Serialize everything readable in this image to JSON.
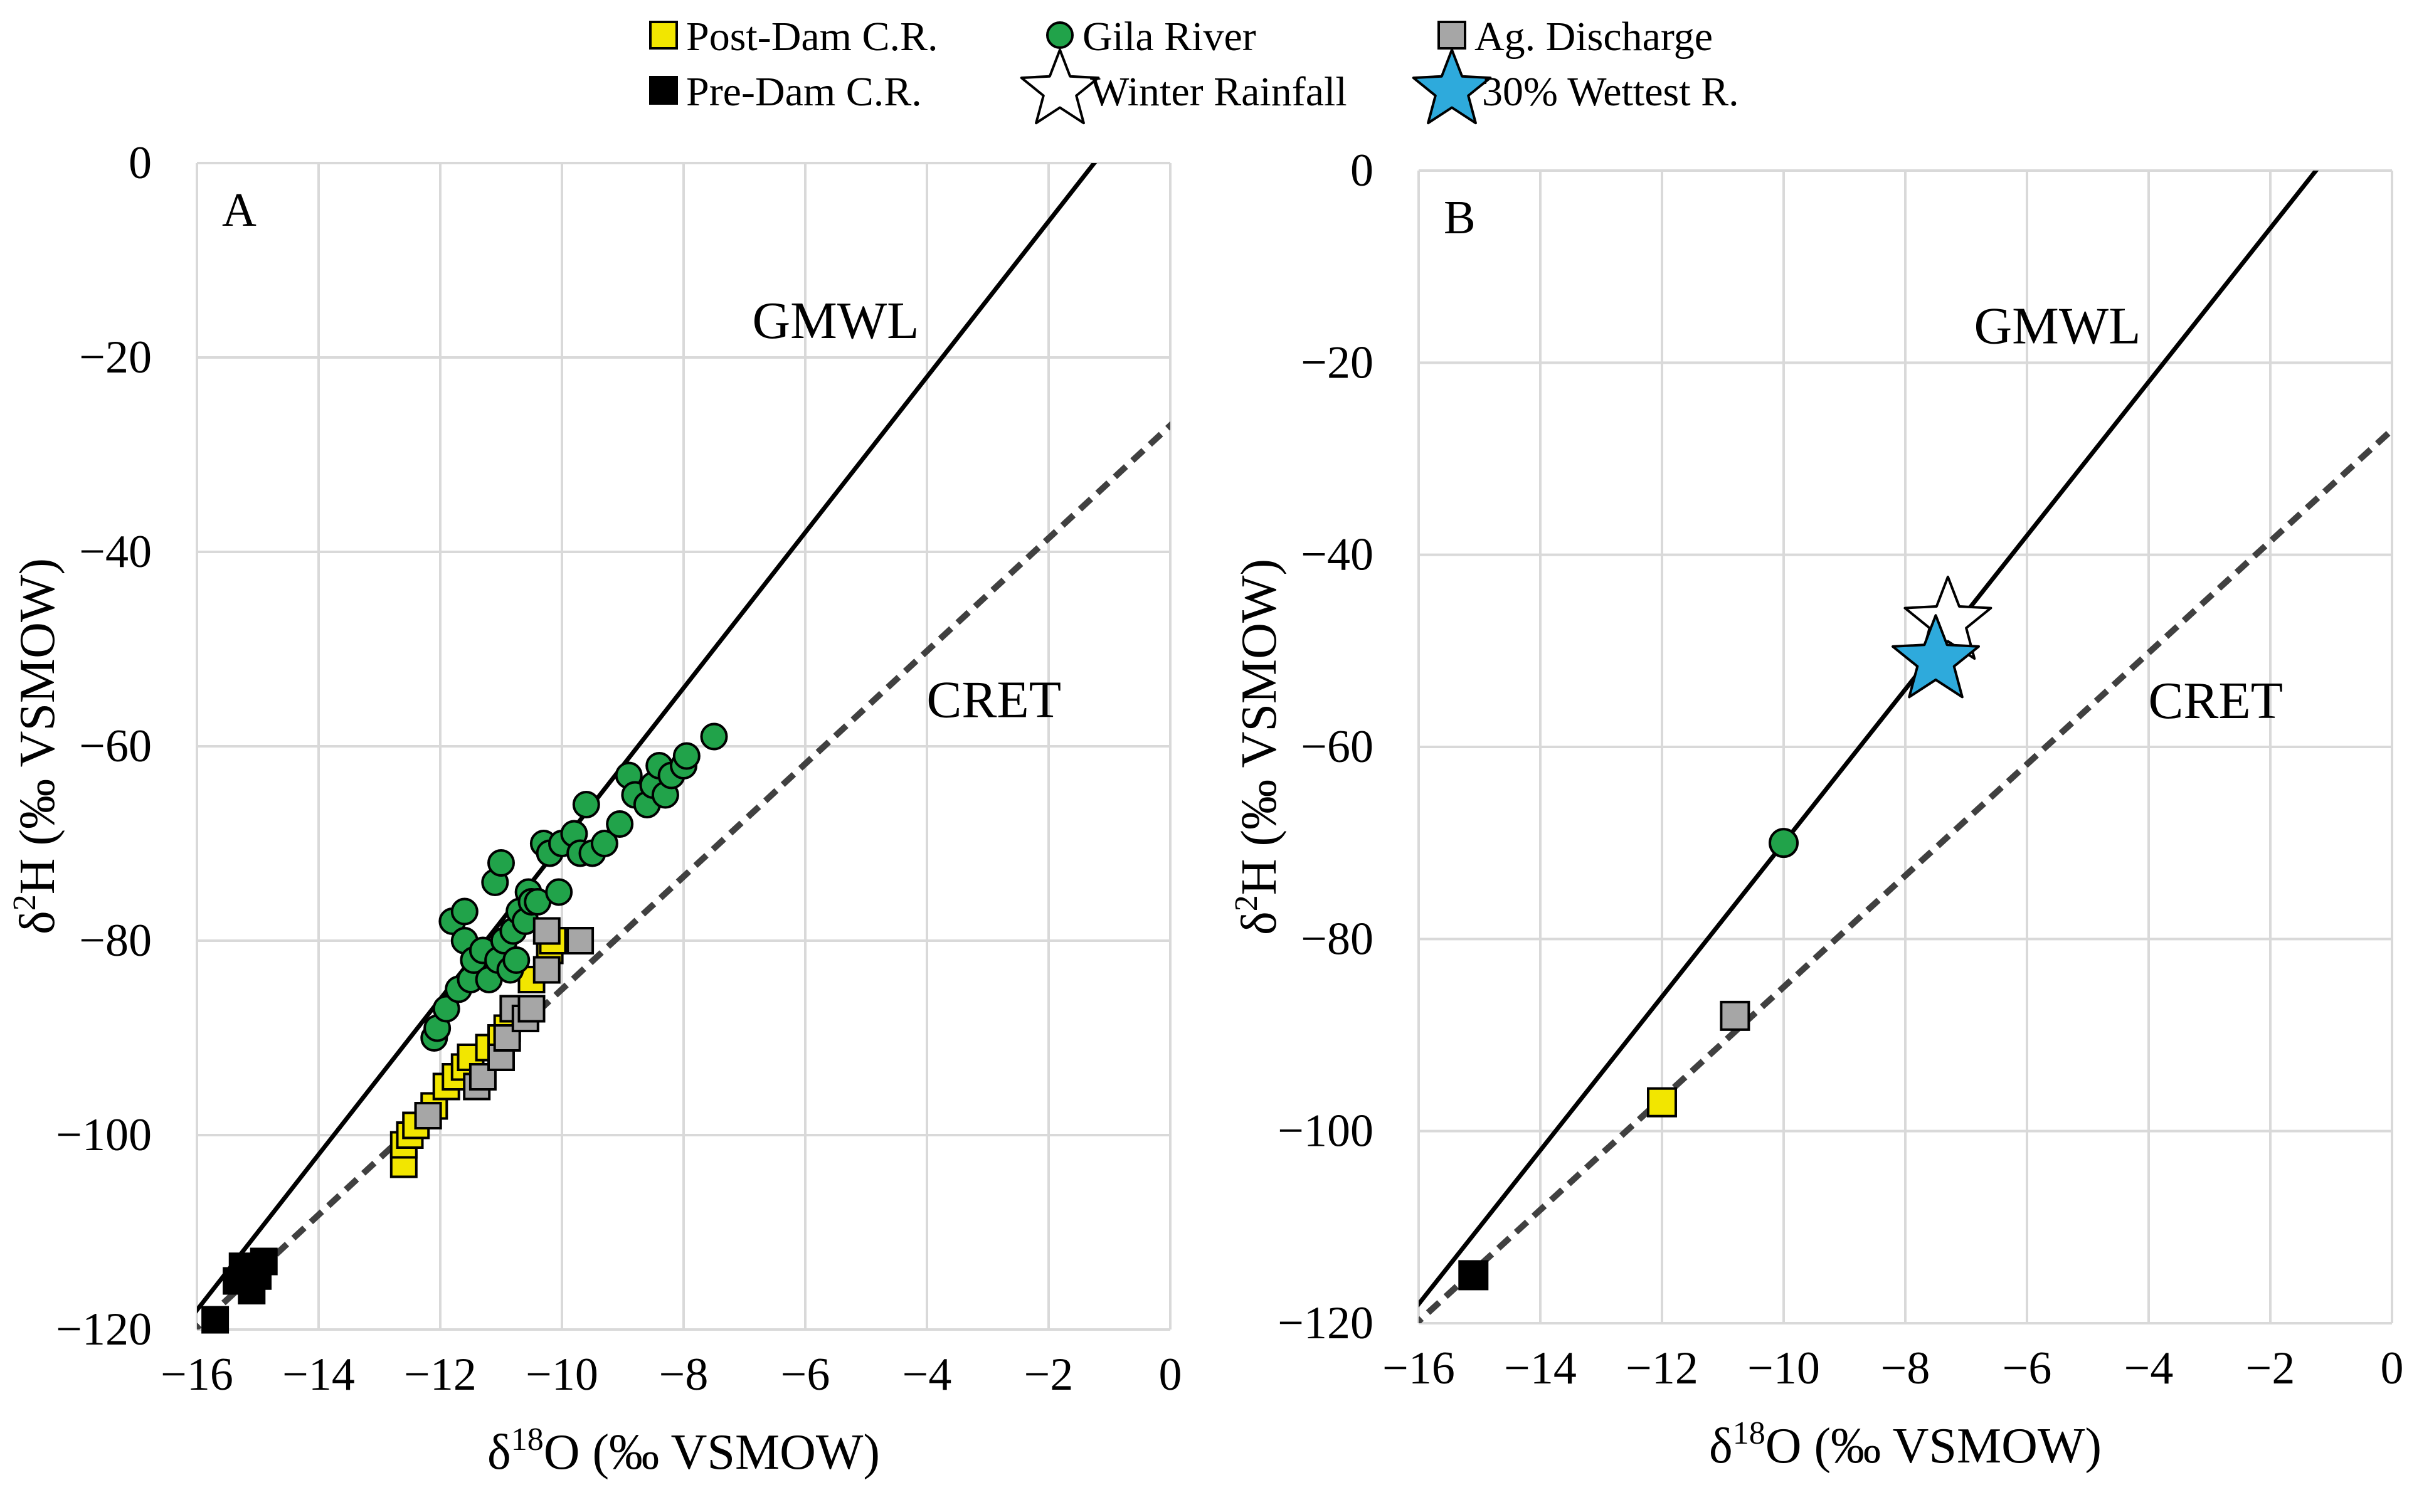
{
  "legend": [
    {
      "label": "Post-Dam C.R.",
      "marker": "square",
      "color": "#f2e600"
    },
    {
      "label": "Pre-Dam C.R.",
      "marker": "square",
      "color": "#000000"
    },
    {
      "label": "Gila River",
      "marker": "circle",
      "color": "#21a34a"
    },
    {
      "label": "Winter Rainfall",
      "marker": "star",
      "color": "#ffffff"
    },
    {
      "label": "Ag. Discharge",
      "marker": "square",
      "color": "#a6a6a6"
    },
    {
      "label": "30% Wettest R.",
      "marker": "star",
      "color": "#2eaadc"
    }
  ],
  "chart_data": [
    {
      "type": "scatter",
      "panel_label": "A",
      "xlabel": "δ18O (‰ VSMOW)",
      "xlabel_parts": {
        "delta": "δ",
        "sup": "18",
        "rest": "O (‰ VSMOW)"
      },
      "ylabel": "δ2H (‰ VSMOW)",
      "ylabel_parts": {
        "delta": "δ",
        "sup": "2",
        "rest": "H (‰ VSMOW)"
      },
      "xlim": [
        -16,
        0
      ],
      "ylim": [
        -120,
        0
      ],
      "xticks": [
        -16,
        -14,
        -12,
        -10,
        -8,
        -6,
        -4,
        -2,
        0
      ],
      "yticks": [
        0,
        -20,
        -40,
        -60,
        -80,
        -100,
        -120
      ],
      "xtick_labels": [
        "−16",
        "−14",
        "−12",
        "−10",
        "−8",
        "−6",
        "−4",
        "−2",
        "0"
      ],
      "ytick_labels": [
        "0",
        "−20",
        "−40",
        "−60",
        "−80",
        "−100",
        "−120"
      ],
      "grid": true,
      "lines": [
        {
          "name": "GMWL",
          "style": "solid",
          "slope": 8,
          "intercept": 10,
          "label_at": [
            -5.5,
            -18
          ]
        },
        {
          "name": "CRET",
          "style": "dashed",
          "slope": 5.8,
          "intercept": -27,
          "label_at": [
            -2.9,
            -57
          ]
        }
      ],
      "series": [
        {
          "name": "Pre-Dam C.R.",
          "marker": "square",
          "color": "#000000",
          "points": [
            [
              -15.7,
              -119
            ],
            [
              -15.35,
              -115
            ],
            [
              -15.25,
              -113.5
            ],
            [
              -15.1,
              -116
            ],
            [
              -15.0,
              -114.5
            ],
            [
              -14.9,
              -113
            ]
          ]
        },
        {
          "name": "Post-Dam C.R.",
          "marker": "square",
          "color": "#f2e600",
          "points": [
            [
              -12.6,
              -103
            ],
            [
              -12.6,
              -101
            ],
            [
              -12.5,
              -100
            ],
            [
              -12.4,
              -99
            ],
            [
              -12.2,
              -98
            ],
            [
              -12.1,
              -97
            ],
            [
              -11.9,
              -95
            ],
            [
              -11.75,
              -94
            ],
            [
              -11.6,
              -93
            ],
            [
              -11.5,
              -92
            ],
            [
              -11.2,
              -91
            ],
            [
              -11.0,
              -90
            ],
            [
              -10.9,
              -89
            ],
            [
              -10.6,
              -88
            ],
            [
              -10.5,
              -84
            ],
            [
              -10.2,
              -81
            ],
            [
              -10.15,
              -80
            ]
          ]
        },
        {
          "name": "Gila River",
          "marker": "circle",
          "color": "#21a34a",
          "points": [
            [
              -12.1,
              -90
            ],
            [
              -12.05,
              -89
            ],
            [
              -11.9,
              -87
            ],
            [
              -11.8,
              -78
            ],
            [
              -11.7,
              -85
            ],
            [
              -11.6,
              -80
            ],
            [
              -11.6,
              -77
            ],
            [
              -11.5,
              -84
            ],
            [
              -11.45,
              -82
            ],
            [
              -11.3,
              -81
            ],
            [
              -11.2,
              -84
            ],
            [
              -11.1,
              -74
            ],
            [
              -11.05,
              -82
            ],
            [
              -11.0,
              -72
            ],
            [
              -10.95,
              -80
            ],
            [
              -10.85,
              -83
            ],
            [
              -10.8,
              -79
            ],
            [
              -10.75,
              -82
            ],
            [
              -10.7,
              -77
            ],
            [
              -10.6,
              -78
            ],
            [
              -10.55,
              -75
            ],
            [
              -10.5,
              -76
            ],
            [
              -10.4,
              -76
            ],
            [
              -10.3,
              -70
            ],
            [
              -10.2,
              -71
            ],
            [
              -10.05,
              -75
            ],
            [
              -10.0,
              -70
            ],
            [
              -9.8,
              -69
            ],
            [
              -9.7,
              -71
            ],
            [
              -9.6,
              -66
            ],
            [
              -9.5,
              -71
            ],
            [
              -9.3,
              -70
            ],
            [
              -9.05,
              -68
            ],
            [
              -8.9,
              -63
            ],
            [
              -8.8,
              -65
            ],
            [
              -8.6,
              -66
            ],
            [
              -8.5,
              -64
            ],
            [
              -8.4,
              -62
            ],
            [
              -8.3,
              -65
            ],
            [
              -8.2,
              -63
            ],
            [
              -8.0,
              -62
            ],
            [
              -7.95,
              -61
            ],
            [
              -7.5,
              -59
            ]
          ]
        },
        {
          "name": "Ag. Discharge",
          "marker": "square",
          "color": "#a6a6a6",
          "points": [
            [
              -12.2,
              -98
            ],
            [
              -11.4,
              -95
            ],
            [
              -11.3,
              -94
            ],
            [
              -11.0,
              -92
            ],
            [
              -10.9,
              -90
            ],
            [
              -10.8,
              -87
            ],
            [
              -10.6,
              -88
            ],
            [
              -10.5,
              -87
            ],
            [
              -10.25,
              -83
            ],
            [
              -10.25,
              -79
            ],
            [
              -9.7,
              -80
            ]
          ]
        }
      ]
    },
    {
      "type": "scatter",
      "panel_label": "B",
      "xlabel": "δ18O (‰ VSMOW)",
      "xlabel_parts": {
        "delta": "δ",
        "sup": "18",
        "rest": "O (‰ VSMOW)"
      },
      "ylabel": "δ2H (‰ VSMOW)",
      "ylabel_parts": {
        "delta": "δ",
        "sup": "2",
        "rest": "H (‰ VSMOW)"
      },
      "xlim": [
        -16,
        0
      ],
      "ylim": [
        -120,
        0
      ],
      "xticks": [
        -16,
        -14,
        -12,
        -10,
        -8,
        -6,
        -4,
        -2,
        0
      ],
      "yticks": [
        0,
        -20,
        -40,
        -60,
        -80,
        -100,
        -120
      ],
      "xtick_labels": [
        "−16",
        "−14",
        "−12",
        "−10",
        "−8",
        "−6",
        "−4",
        "−2",
        "0"
      ],
      "ytick_labels": [
        "0",
        "−20",
        "−40",
        "−60",
        "−80",
        "−100",
        "−120"
      ],
      "grid": true,
      "lines": [
        {
          "name": "GMWL",
          "style": "solid",
          "slope": 8,
          "intercept": 10,
          "label_at": [
            -5.5,
            -18
          ]
        },
        {
          "name": "CRET",
          "style": "dashed",
          "slope": 5.8,
          "intercept": -27,
          "label_at": [
            -2.9,
            -57
          ]
        }
      ],
      "series": [
        {
          "name": "Pre-Dam C.R.",
          "marker": "square",
          "color": "#000000",
          "points": [
            [
              -15.1,
              -115
            ]
          ]
        },
        {
          "name": "Post-Dam C.R.",
          "marker": "square",
          "color": "#f2e600",
          "points": [
            [
              -12.0,
              -97
            ]
          ]
        },
        {
          "name": "Ag. Discharge",
          "marker": "square",
          "color": "#a6a6a6",
          "points": [
            [
              -10.8,
              -88
            ]
          ]
        },
        {
          "name": "Gila River",
          "marker": "circle",
          "color": "#21a34a",
          "points": [
            [
              -10.0,
              -70
            ]
          ]
        },
        {
          "name": "Winter Rainfall",
          "marker": "star",
          "color": "#ffffff",
          "points": [
            [
              -7.3,
              -47
            ]
          ]
        },
        {
          "name": "30% Wettest R.",
          "marker": "star",
          "color": "#2eaadc",
          "points": [
            [
              -7.5,
              -51
            ]
          ]
        }
      ]
    }
  ]
}
